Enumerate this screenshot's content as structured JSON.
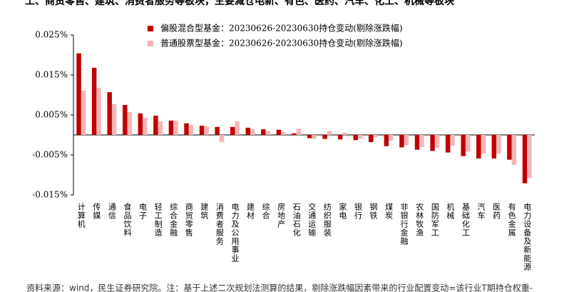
{
  "chart_data": {
    "type": "bar",
    "title": "工、商贸零售、建筑、消费者服务等板块，主要减仓电新、有色、医药、汽车、化工、机械等板块",
    "note": "资料来源：wind，民生证券研究院。注：基于上述二次规划法测算的结果，剔除涨跌幅因素带来的行业配置变动=该行业T期持仓权重-",
    "categories": [
      "计算机",
      "传媒",
      "通信",
      "食品饮料",
      "电子",
      "轻工制造",
      "综合金融",
      "商贸零售",
      "建筑",
      "消费者服务",
      "电力及公用事业",
      "建材",
      "综合",
      "房地产",
      "石油石化",
      "交通运输",
      "纺织服装",
      "家电",
      "银行",
      "钢铁",
      "煤炭",
      "非银行金融",
      "农林牧渔",
      "国防军工",
      "机械",
      "基础化工",
      "汽车",
      "医药",
      "有色金属",
      "电力设备及新能源"
    ],
    "series": [
      {
        "name": "偏股混合型基金：20230626-20230630持仓变动(剔除涨跌幅)",
        "color": "#c00000",
        "values": [
          0.0204,
          0.0168,
          0.0107,
          0.0075,
          0.0054,
          0.0048,
          0.0036,
          0.0029,
          0.0023,
          0.002,
          0.002,
          0.0018,
          0.0014,
          0.0013,
          0.0004,
          -0.0008,
          -0.001,
          -0.0011,
          -0.0013,
          -0.0018,
          -0.0028,
          -0.0031,
          -0.0037,
          -0.004,
          -0.0044,
          -0.0053,
          -0.0059,
          -0.0059,
          -0.0062,
          -0.0121
        ]
      },
      {
        "name": "普通股票型基金：20230626-20230630持仓变动(剔除涨跌幅)",
        "color": "#f4b6b6",
        "values": [
          0.0111,
          0.0118,
          0.0077,
          0.0057,
          0.0043,
          0.0034,
          0.0036,
          0.0025,
          0.0021,
          -0.0018,
          0.0034,
          0.0014,
          0.0009,
          0.0007,
          0.0016,
          -0.001,
          0.001,
          0.0006,
          -0.001,
          -0.0006,
          -0.0014,
          -0.0026,
          -0.003,
          -0.0032,
          -0.0027,
          -0.0042,
          -0.0047,
          -0.0046,
          -0.0075,
          -0.0108
        ]
      }
    ],
    "ylim": [
      -0.015,
      0.025
    ],
    "yticks": [
      {
        "value": -0.015,
        "label": "-0.015%"
      },
      {
        "value": -0.005,
        "label": "-0.005%"
      },
      {
        "value": 0.005,
        "label": "0.005%"
      },
      {
        "value": 0.015,
        "label": "0.015%"
      },
      {
        "value": 0.025,
        "label": "0.025%"
      }
    ],
    "legend": "top-left"
  }
}
